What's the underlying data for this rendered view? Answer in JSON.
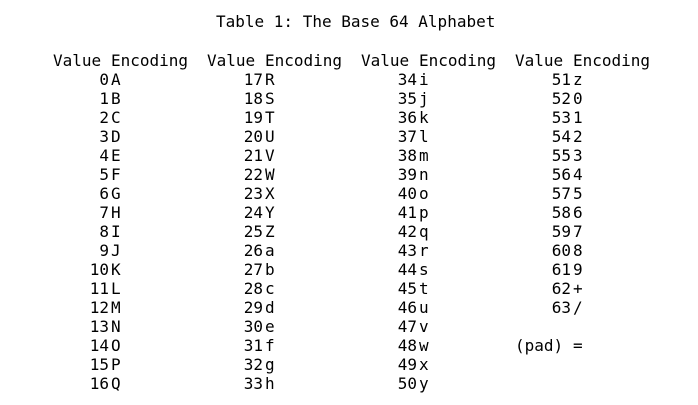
{
  "title": "Table 1: The Base 64 Alphabet",
  "headers": {
    "value": "Value",
    "encoding": "Encoding"
  },
  "columns": [
    {
      "rows": [
        {
          "value": "0",
          "encoding": "A"
        },
        {
          "value": "1",
          "encoding": "B"
        },
        {
          "value": "2",
          "encoding": "C"
        },
        {
          "value": "3",
          "encoding": "D"
        },
        {
          "value": "4",
          "encoding": "E"
        },
        {
          "value": "5",
          "encoding": "F"
        },
        {
          "value": "6",
          "encoding": "G"
        },
        {
          "value": "7",
          "encoding": "H"
        },
        {
          "value": "8",
          "encoding": "I"
        },
        {
          "value": "9",
          "encoding": "J"
        },
        {
          "value": "10",
          "encoding": "K"
        },
        {
          "value": "11",
          "encoding": "L"
        },
        {
          "value": "12",
          "encoding": "M"
        },
        {
          "value": "13",
          "encoding": "N"
        },
        {
          "value": "14",
          "encoding": "O"
        },
        {
          "value": "15",
          "encoding": "P"
        },
        {
          "value": "16",
          "encoding": "Q"
        }
      ]
    },
    {
      "rows": [
        {
          "value": "17",
          "encoding": "R"
        },
        {
          "value": "18",
          "encoding": "S"
        },
        {
          "value": "19",
          "encoding": "T"
        },
        {
          "value": "20",
          "encoding": "U"
        },
        {
          "value": "21",
          "encoding": "V"
        },
        {
          "value": "22",
          "encoding": "W"
        },
        {
          "value": "23",
          "encoding": "X"
        },
        {
          "value": "24",
          "encoding": "Y"
        },
        {
          "value": "25",
          "encoding": "Z"
        },
        {
          "value": "26",
          "encoding": "a"
        },
        {
          "value": "27",
          "encoding": "b"
        },
        {
          "value": "28",
          "encoding": "c"
        },
        {
          "value": "29",
          "encoding": "d"
        },
        {
          "value": "30",
          "encoding": "e"
        },
        {
          "value": "31",
          "encoding": "f"
        },
        {
          "value": "32",
          "encoding": "g"
        },
        {
          "value": "33",
          "encoding": "h"
        }
      ]
    },
    {
      "rows": [
        {
          "value": "34",
          "encoding": "i"
        },
        {
          "value": "35",
          "encoding": "j"
        },
        {
          "value": "36",
          "encoding": "k"
        },
        {
          "value": "37",
          "encoding": "l"
        },
        {
          "value": "38",
          "encoding": "m"
        },
        {
          "value": "39",
          "encoding": "n"
        },
        {
          "value": "40",
          "encoding": "o"
        },
        {
          "value": "41",
          "encoding": "p"
        },
        {
          "value": "42",
          "encoding": "q"
        },
        {
          "value": "43",
          "encoding": "r"
        },
        {
          "value": "44",
          "encoding": "s"
        },
        {
          "value": "45",
          "encoding": "t"
        },
        {
          "value": "46",
          "encoding": "u"
        },
        {
          "value": "47",
          "encoding": "v"
        },
        {
          "value": "48",
          "encoding": "w"
        },
        {
          "value": "49",
          "encoding": "x"
        },
        {
          "value": "50",
          "encoding": "y"
        }
      ]
    },
    {
      "rows": [
        {
          "value": "51",
          "encoding": "z"
        },
        {
          "value": "52",
          "encoding": "0"
        },
        {
          "value": "53",
          "encoding": "1"
        },
        {
          "value": "54",
          "encoding": "2"
        },
        {
          "value": "55",
          "encoding": "3"
        },
        {
          "value": "56",
          "encoding": "4"
        },
        {
          "value": "57",
          "encoding": "5"
        },
        {
          "value": "58",
          "encoding": "6"
        },
        {
          "value": "59",
          "encoding": "7"
        },
        {
          "value": "60",
          "encoding": "8"
        },
        {
          "value": "61",
          "encoding": "9"
        },
        {
          "value": "62",
          "encoding": "+"
        },
        {
          "value": "63",
          "encoding": "/"
        }
      ],
      "pad": {
        "label": "(pad)",
        "encoding": "="
      }
    }
  ]
}
